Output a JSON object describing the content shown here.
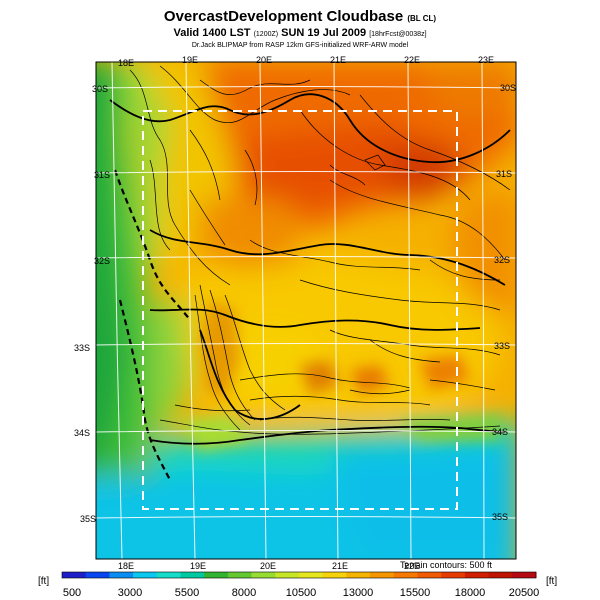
{
  "header": {
    "title": "OvercastDevelopment Cloudbase",
    "title_suffix": "(BL CL)",
    "valid_line": "Valid 1400 LST",
    "valid_time": "(1200Z)",
    "date": "SUN 19 Jul 2009",
    "forecast": "[18hrFcst@0038z]",
    "credit": "Dr.Jack BLIPMAP from RASP 12km GFS-initialized WRF-ARW model"
  },
  "map": {
    "lon_labels_top": [
      "18E",
      "19E",
      "20E",
      "21E",
      "22E",
      "23E"
    ],
    "lon_labels_bottom": [
      "18E",
      "19E",
      "20E",
      "21E",
      "22E"
    ],
    "lat_labels_left": [
      "30S",
      "31S",
      "32S",
      "33S",
      "34S",
      "35S"
    ],
    "lat_labels_right": [
      "30S",
      "31S",
      "32S",
      "33S",
      "34S",
      "35S"
    ],
    "terrain_note": "Terrain contours: 500 ft"
  },
  "colorbar": {
    "unit": "[ft]",
    "ticks": [
      "500",
      "3000",
      "5500",
      "8000",
      "10500",
      "13000",
      "15500",
      "18000",
      "20500"
    ],
    "colors": [
      "#1e1ec8",
      "#0a46f0",
      "#0a8cf0",
      "#0ac8f0",
      "#14dcc8",
      "#00c8a0",
      "#32b432",
      "#64c832",
      "#96dc32",
      "#c8e628",
      "#e6e61e",
      "#f5d20a",
      "#f5b400",
      "#f59600",
      "#f57800",
      "#f05a00",
      "#e63c00",
      "#d21e00",
      "#be1400",
      "#b40a14"
    ]
  }
}
